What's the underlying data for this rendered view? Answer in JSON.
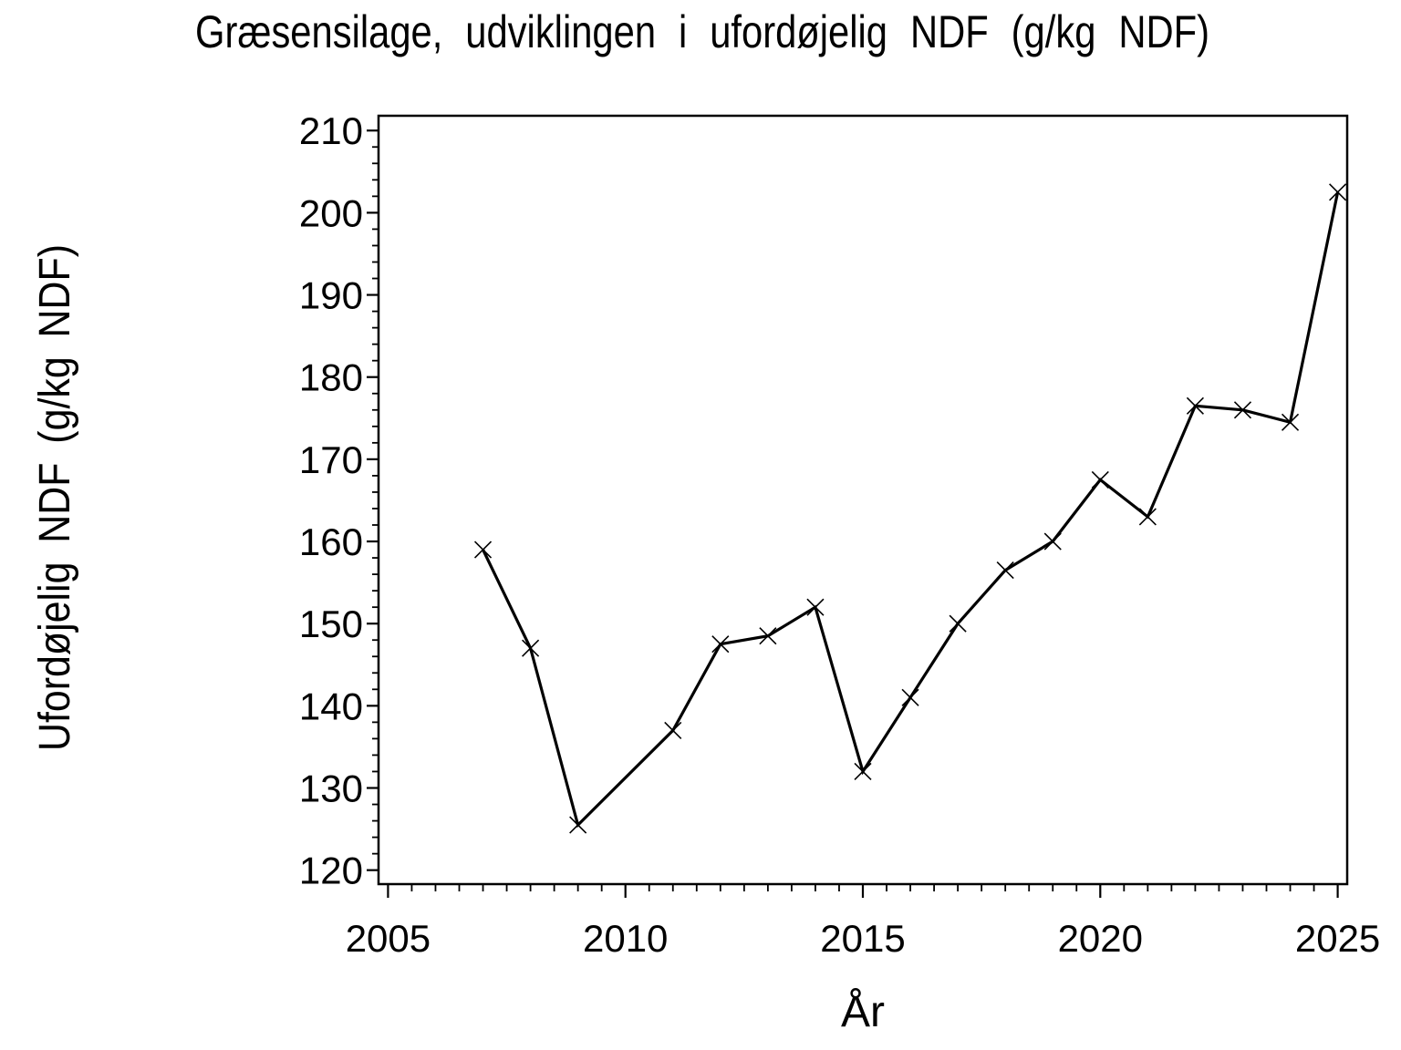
{
  "figure": {
    "background_color": "#ffffff",
    "foreground_color": "#000000"
  },
  "chart_data": {
    "type": "line",
    "title": "Græsensilage, udviklingen i ufordøjelig NDF (g/kg NDF)",
    "xlabel": "År",
    "ylabel": "Ufordøjelig NDF (g/kg NDF)",
    "x": [
      2007,
      2008,
      2009,
      2011,
      2012,
      2013,
      2014,
      2015,
      2016,
      2017,
      2018,
      2019,
      2020,
      2021,
      2022,
      2023,
      2024,
      2025
    ],
    "series": [
      {
        "name": "ufordoejelig-ndf",
        "values": [
          159,
          147,
          125.5,
          137,
          147.5,
          148.5,
          152,
          132,
          141,
          150,
          156.5,
          160,
          167.5,
          163,
          176.5,
          176,
          174.5,
          202.5
        ]
      }
    ],
    "marker": "x",
    "line_color": "#000000",
    "xlim": [
      2004.8,
      2025.2
    ],
    "ylim": [
      118.3,
      211.8
    ],
    "xticks_major": [
      2005,
      2010,
      2015,
      2020,
      2025
    ],
    "x_minor_step": 0.5,
    "yticks_major": [
      120,
      130,
      140,
      150,
      160,
      170,
      180,
      190,
      200,
      210
    ],
    "y_minor_step": 2,
    "grid": false,
    "legend": false
  }
}
